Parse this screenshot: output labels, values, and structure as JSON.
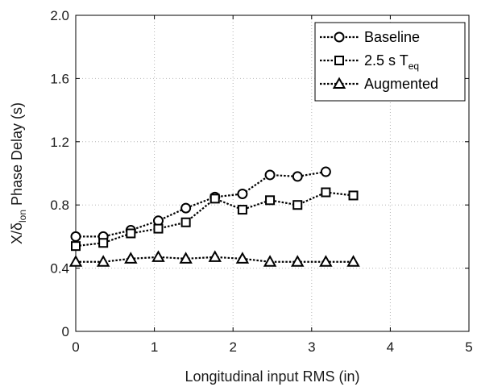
{
  "chart_data": {
    "type": "line",
    "xlabel": "Longitudinal input RMS (in)",
    "ylabel_parts": {
      "main": "X/δ",
      "sub": "lon",
      "rest": " Phase Delay (s)"
    },
    "xlim": [
      0,
      5
    ],
    "ylim": [
      0,
      2.0
    ],
    "x_ticks": [
      "0",
      "1",
      "2",
      "3",
      "4",
      "5"
    ],
    "y_ticks": [
      "0",
      "0.4",
      "0.8",
      "1.2",
      "1.6",
      "2.0"
    ],
    "grid": true,
    "legend_position": "top-right",
    "series": [
      {
        "name": "Baseline",
        "marker": "circle",
        "x": [
          0,
          0.35,
          0.7,
          1.05,
          1.4,
          1.77,
          2.12,
          2.47,
          2.82,
          3.18
        ],
        "y": [
          0.6,
          0.6,
          0.64,
          0.7,
          0.78,
          0.85,
          0.87,
          0.99,
          0.98,
          1.01
        ]
      },
      {
        "name": "2.5 s T",
        "name_sub": "eq",
        "marker": "square",
        "x": [
          0,
          0.35,
          0.7,
          1.05,
          1.4,
          1.77,
          2.12,
          2.47,
          2.82,
          3.18,
          3.53
        ],
        "y": [
          0.54,
          0.56,
          0.62,
          0.65,
          0.69,
          0.84,
          0.77,
          0.83,
          0.8,
          0.88,
          0.86
        ]
      },
      {
        "name": "Augmented",
        "marker": "triangle",
        "x": [
          0,
          0.35,
          0.7,
          1.05,
          1.4,
          1.77,
          2.12,
          2.47,
          2.82,
          3.18,
          3.53
        ],
        "y": [
          0.44,
          0.44,
          0.46,
          0.47,
          0.46,
          0.47,
          0.46,
          0.44,
          0.44,
          0.44,
          0.44
        ]
      }
    ]
  }
}
